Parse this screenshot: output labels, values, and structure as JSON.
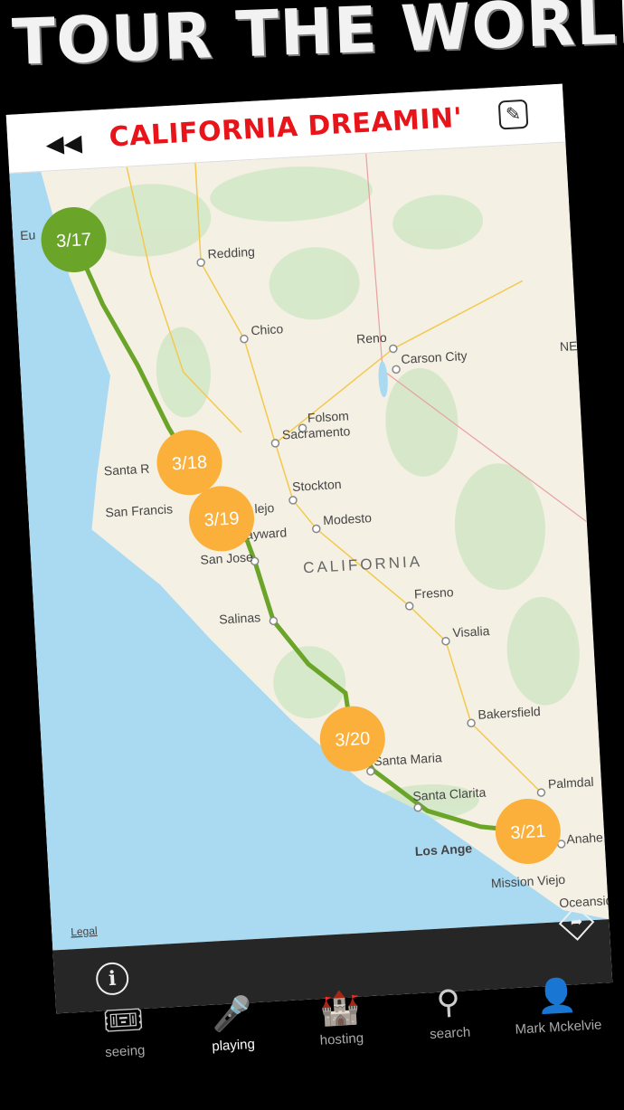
{
  "app_title": "TOUR THE WORLD",
  "header": {
    "title": "CALIFORNIA DREAMIN'",
    "back_icon": "rewind-icon",
    "edit_icon": "edit-pencil-icon"
  },
  "map": {
    "legal": "Legal",
    "region_label": "CALIFORNIA",
    "cities": [
      {
        "name": "Eu"
      },
      {
        "name": "Redding"
      },
      {
        "name": "Chico"
      },
      {
        "name": "Reno"
      },
      {
        "name": "Carson City"
      },
      {
        "name": "Folsom"
      },
      {
        "name": "Sacramento"
      },
      {
        "name": "Stockton"
      },
      {
        "name": "Modesto"
      },
      {
        "name": "lejo"
      },
      {
        "name": "Santa R"
      },
      {
        "name": "San Francis"
      },
      {
        "name": "ayward"
      },
      {
        "name": "San Jose"
      },
      {
        "name": "Fresno"
      },
      {
        "name": "Visalia"
      },
      {
        "name": "Salinas"
      },
      {
        "name": "Bakersfield"
      },
      {
        "name": "Santa Maria"
      },
      {
        "name": "Santa Clarita"
      },
      {
        "name": "Palmdal"
      },
      {
        "name": "Los Ange"
      },
      {
        "name": "Anahe"
      },
      {
        "name": "Mission Viejo"
      },
      {
        "name": "Oceanside"
      },
      {
        "name": "NE"
      }
    ],
    "stops": [
      {
        "label": "3/17",
        "color": "#6aa52a"
      },
      {
        "label": "3/18",
        "color": "#fbb03b"
      },
      {
        "label": "3/19",
        "color": "#fbb03b"
      },
      {
        "label": "3/20",
        "color": "#fbb03b"
      },
      {
        "label": "3/21",
        "color": "#fbb03b"
      }
    ],
    "route_color": "#6aa52a",
    "water_color": "#a9daf2",
    "land_color": "#f5f0e4"
  },
  "bottom_bar": {
    "info_icon": "info-icon",
    "directions_icon": "directions-icon"
  },
  "tabs": [
    {
      "label": "seeing",
      "icon": "ticket-icon",
      "active": false
    },
    {
      "label": "playing",
      "icon": "microphone-icon",
      "active": true
    },
    {
      "label": "hosting",
      "icon": "house-icon",
      "active": false
    },
    {
      "label": "search",
      "icon": "magnifier-icon",
      "active": false
    },
    {
      "label": "Mark Mckelvie",
      "icon": "id-badge-icon",
      "active": false
    }
  ]
}
